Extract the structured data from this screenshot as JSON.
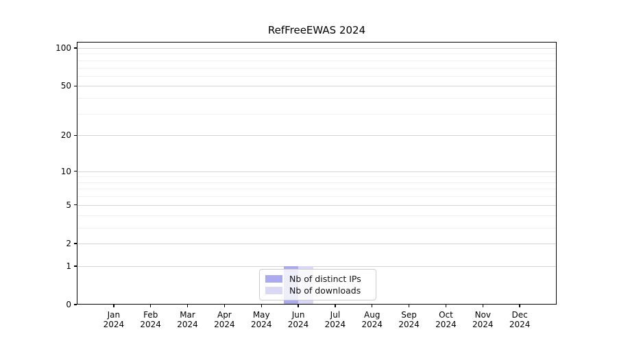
{
  "chart_data": {
    "type": "bar",
    "title": "RefFreeEWAS 2024",
    "categories": [
      "Jan 2024",
      "Feb 2024",
      "Mar 2024",
      "Apr 2024",
      "May 2024",
      "Jun 2024",
      "Jul 2024",
      "Aug 2024",
      "Sep 2024",
      "Oct 2024",
      "Nov 2024",
      "Dec 2024"
    ],
    "series": [
      {
        "name": "Nb of distinct IPs",
        "color": "#aaaaec",
        "values": [
          0,
          0,
          0,
          0,
          0,
          1,
          0,
          0,
          0,
          0,
          0,
          0
        ]
      },
      {
        "name": "Nb of downloads",
        "color": "#d9d9f5",
        "values": [
          0,
          0,
          0,
          0,
          0,
          1,
          0,
          0,
          0,
          0,
          0,
          0
        ]
      }
    ],
    "yscale": "log1p",
    "ylim": [
      0,
      112
    ],
    "yticks": [
      0,
      1,
      2,
      5,
      10,
      20,
      50,
      100
    ],
    "yticks_minor": [
      3,
      4,
      6,
      7,
      8,
      9,
      30,
      40,
      60,
      70,
      80,
      90
    ],
    "xlabel": "",
    "ylabel": "",
    "grid": true,
    "legend_position": "bottom-center"
  }
}
